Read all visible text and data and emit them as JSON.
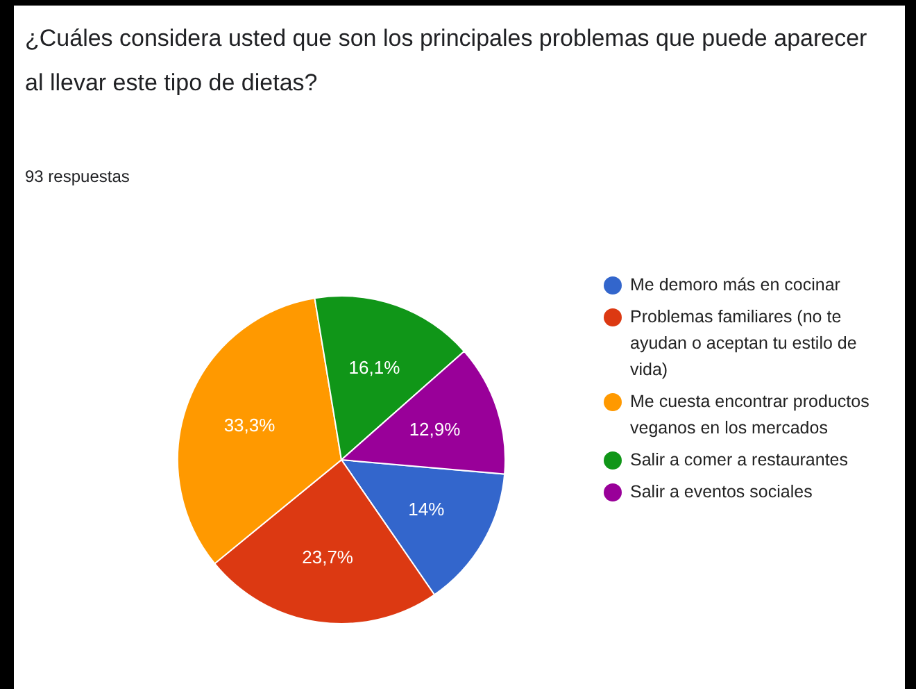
{
  "chart_data": {
    "type": "pie",
    "title": "¿Cuáles considera usted que son los principales problemas que puede aparecer al llevar este tipo de dietas?",
    "subtitle": "93 respuestas",
    "categories": [
      "Me demoro más en cocinar",
      "Problemas familiares (no te ayudan o aceptan tu estilo de vida)",
      "Me cuesta encontrar productos veganos en los mercados",
      "Salir a comer a restaurantes",
      "Salir a eventos sociales"
    ],
    "values": [
      14,
      23.7,
      33.3,
      16.1,
      12.9
    ],
    "colors": [
      "#3366cc",
      "#dc3912",
      "#ff9900",
      "#109618",
      "#990099"
    ],
    "value_labels": [
      "14%",
      "23,7%",
      "33,3%",
      "16,1%",
      "12,9%"
    ],
    "legend": "right"
  }
}
